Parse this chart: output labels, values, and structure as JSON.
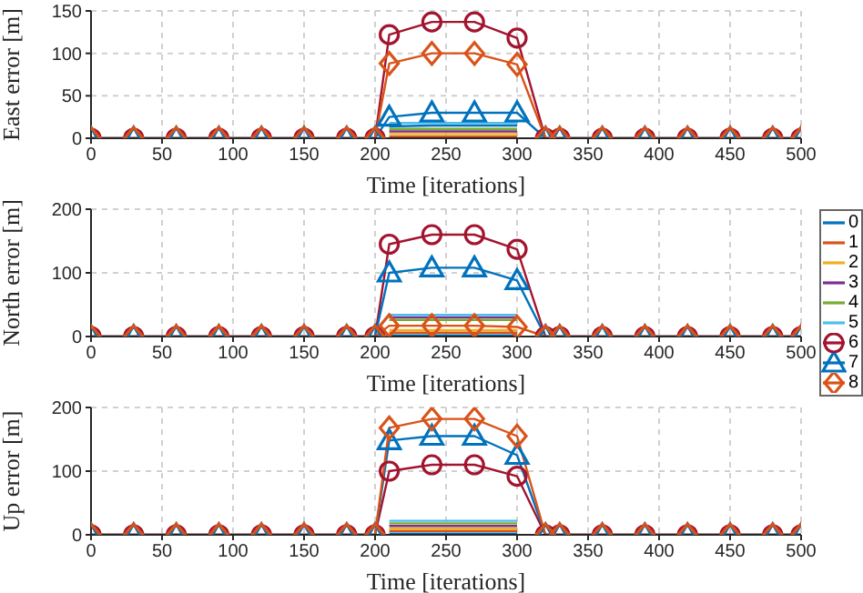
{
  "chart_data": [
    {
      "type": "line",
      "xlabel": "Time [iterations]",
      "ylabel": "East error [m]",
      "x": [
        0,
        30,
        60,
        90,
        120,
        150,
        180,
        200,
        210,
        240,
        270,
        300,
        320,
        330,
        360,
        390,
        420,
        450,
        480,
        500
      ],
      "xlim": [
        0,
        500
      ],
      "xticks": [
        0,
        50,
        100,
        150,
        200,
        250,
        300,
        350,
        400,
        450,
        500
      ],
      "ylim": [
        0,
        150
      ],
      "yticks": [
        0,
        50,
        100,
        150
      ],
      "grid": true,
      "legend": false,
      "line_style": "solid",
      "series": [
        {
          "color": "#0072bd",
          "marker": "none",
          "values": [
            null,
            null,
            null,
            null,
            null,
            null,
            null,
            null,
            14,
            15,
            15,
            15,
            null,
            null,
            null,
            null,
            null,
            null,
            null,
            null
          ]
        },
        {
          "color": "#d95319",
          "marker": "none",
          "values": [
            null,
            null,
            null,
            null,
            null,
            null,
            null,
            null,
            2,
            2,
            2,
            2,
            null,
            null,
            null,
            null,
            null,
            null,
            null,
            null
          ]
        },
        {
          "color": "#edb120",
          "marker": "none",
          "values": [
            null,
            null,
            null,
            null,
            null,
            null,
            null,
            null,
            5,
            5,
            5,
            5,
            null,
            null,
            null,
            null,
            null,
            null,
            null,
            null
          ]
        },
        {
          "color": "#7e2f8e",
          "marker": "none",
          "values": [
            null,
            null,
            null,
            null,
            null,
            null,
            null,
            null,
            8,
            8,
            8,
            8,
            null,
            null,
            null,
            null,
            null,
            null,
            null,
            null
          ]
        },
        {
          "color": "#77ac30",
          "marker": "none",
          "values": [
            null,
            null,
            null,
            null,
            null,
            null,
            null,
            null,
            11,
            11,
            11,
            11,
            null,
            null,
            null,
            null,
            null,
            null,
            null,
            null
          ]
        },
        {
          "color": "#4dbeee",
          "marker": "none",
          "values": [
            null,
            null,
            null,
            null,
            null,
            null,
            null,
            null,
            18,
            18,
            18,
            18,
            null,
            null,
            null,
            null,
            null,
            null,
            null,
            null
          ]
        },
        {
          "color": "#a2142f",
          "marker": "circle",
          "values": [
            0,
            0,
            0,
            0,
            0,
            0,
            0,
            0,
            122,
            137,
            137,
            118,
            0,
            0,
            0,
            0,
            0,
            0,
            0,
            0
          ]
        },
        {
          "color": "#0072bd",
          "marker": "triangle",
          "values": [
            0,
            0,
            0,
            0,
            0,
            0,
            0,
            0,
            25,
            30,
            30,
            30,
            0,
            0,
            0,
            0,
            0,
            0,
            0,
            0
          ]
        },
        {
          "color": "#d95319",
          "marker": "diamond",
          "values": [
            0,
            0,
            0,
            0,
            0,
            0,
            0,
            0,
            88,
            100,
            100,
            87,
            0,
            0,
            0,
            0,
            0,
            0,
            0,
            0
          ]
        }
      ]
    },
    {
      "type": "line",
      "xlabel": "Time [iterations]",
      "ylabel": "North error [m]",
      "x": [
        0,
        30,
        60,
        90,
        120,
        150,
        180,
        200,
        210,
        240,
        270,
        300,
        320,
        330,
        360,
        390,
        420,
        450,
        480,
        500
      ],
      "xlim": [
        0,
        500
      ],
      "xticks": [
        0,
        50,
        100,
        150,
        200,
        250,
        300,
        350,
        400,
        450,
        500
      ],
      "ylim": [
        0,
        200
      ],
      "yticks": [
        0,
        100,
        200
      ],
      "grid": true,
      "legend": "right",
      "line_style": "solid",
      "series": [
        {
          "name": "0",
          "color": "#0072bd",
          "marker": "none",
          "values": [
            null,
            null,
            null,
            null,
            null,
            null,
            null,
            null,
            2,
            2,
            2,
            2,
            null,
            null,
            null,
            null,
            null,
            null,
            null,
            null
          ]
        },
        {
          "name": "1",
          "color": "#d95319",
          "marker": "none",
          "values": [
            null,
            null,
            null,
            null,
            null,
            null,
            null,
            null,
            6,
            6,
            6,
            6,
            null,
            null,
            null,
            null,
            null,
            null,
            null,
            null
          ]
        },
        {
          "name": "2",
          "color": "#edb120",
          "marker": "none",
          "values": [
            null,
            null,
            null,
            null,
            null,
            null,
            null,
            null,
            10,
            10,
            10,
            10,
            null,
            null,
            null,
            null,
            null,
            null,
            null,
            null
          ]
        },
        {
          "name": "3",
          "color": "#7e2f8e",
          "marker": "none",
          "values": [
            null,
            null,
            null,
            null,
            null,
            null,
            null,
            null,
            30,
            30,
            30,
            30,
            null,
            null,
            null,
            null,
            null,
            null,
            null,
            null
          ]
        },
        {
          "name": "4",
          "color": "#77ac30",
          "marker": "none",
          "values": [
            null,
            null,
            null,
            null,
            null,
            null,
            null,
            null,
            26,
            26,
            26,
            26,
            null,
            null,
            null,
            null,
            null,
            null,
            null,
            null
          ]
        },
        {
          "name": "5",
          "color": "#4dbeee",
          "marker": "none",
          "values": [
            null,
            null,
            null,
            null,
            null,
            null,
            null,
            null,
            34,
            34,
            34,
            34,
            null,
            null,
            null,
            null,
            null,
            null,
            null,
            null
          ]
        },
        {
          "name": "6",
          "color": "#a2142f",
          "marker": "circle",
          "values": [
            0,
            0,
            0,
            0,
            0,
            0,
            0,
            0,
            145,
            160,
            160,
            137,
            0,
            0,
            0,
            0,
            0,
            0,
            0,
            0
          ]
        },
        {
          "name": "7",
          "color": "#0072bd",
          "marker": "triangle",
          "values": [
            0,
            0,
            0,
            0,
            0,
            0,
            0,
            0,
            100,
            108,
            108,
            88,
            0,
            0,
            0,
            0,
            0,
            0,
            0,
            0
          ]
        },
        {
          "name": "8",
          "color": "#d95319",
          "marker": "diamond",
          "values": [
            0,
            0,
            0,
            0,
            0,
            0,
            0,
            0,
            17,
            17,
            17,
            15,
            0,
            0,
            0,
            0,
            0,
            0,
            0,
            0
          ]
        }
      ]
    },
    {
      "type": "line",
      "xlabel": "Time [iterations]",
      "ylabel": "Up error [m]",
      "x": [
        0,
        30,
        60,
        90,
        120,
        150,
        180,
        200,
        210,
        240,
        270,
        300,
        320,
        330,
        360,
        390,
        420,
        450,
        480,
        500
      ],
      "xlim": [
        0,
        500
      ],
      "xticks": [
        0,
        50,
        100,
        150,
        200,
        250,
        300,
        350,
        400,
        450,
        500
      ],
      "ylim": [
        0,
        200
      ],
      "yticks": [
        0,
        100,
        200
      ],
      "grid": true,
      "legend": false,
      "line_style": "solid",
      "series": [
        {
          "color": "#0072bd",
          "marker": "none",
          "values": [
            null,
            null,
            null,
            null,
            null,
            null,
            null,
            null,
            2,
            2,
            2,
            2,
            null,
            null,
            null,
            null,
            null,
            null,
            null,
            null
          ]
        },
        {
          "color": "#d95319",
          "marker": "none",
          "values": [
            null,
            null,
            null,
            null,
            null,
            null,
            null,
            null,
            6,
            6,
            6,
            6,
            null,
            null,
            null,
            null,
            null,
            null,
            null,
            null
          ]
        },
        {
          "color": "#edb120",
          "marker": "none",
          "values": [
            null,
            null,
            null,
            null,
            null,
            null,
            null,
            null,
            10,
            10,
            10,
            10,
            null,
            null,
            null,
            null,
            null,
            null,
            null,
            null
          ]
        },
        {
          "color": "#7e2f8e",
          "marker": "none",
          "values": [
            null,
            null,
            null,
            null,
            null,
            null,
            null,
            null,
            14,
            14,
            14,
            14,
            null,
            null,
            null,
            null,
            null,
            null,
            null,
            null
          ]
        },
        {
          "color": "#77ac30",
          "marker": "none",
          "values": [
            null,
            null,
            null,
            null,
            null,
            null,
            null,
            null,
            18,
            18,
            18,
            18,
            null,
            null,
            null,
            null,
            null,
            null,
            null,
            null
          ]
        },
        {
          "color": "#4dbeee",
          "marker": "none",
          "values": [
            null,
            null,
            null,
            null,
            null,
            null,
            null,
            null,
            22,
            22,
            22,
            22,
            null,
            null,
            null,
            null,
            null,
            null,
            null,
            null
          ]
        },
        {
          "color": "#a2142f",
          "marker": "circle",
          "values": [
            0,
            0,
            0,
            0,
            0,
            0,
            0,
            0,
            100,
            110,
            110,
            92,
            0,
            0,
            0,
            0,
            0,
            0,
            0,
            0
          ]
        },
        {
          "color": "#0072bd",
          "marker": "triangle",
          "values": [
            0,
            0,
            0,
            0,
            0,
            0,
            0,
            0,
            148,
            155,
            155,
            125,
            0,
            0,
            0,
            0,
            0,
            0,
            0,
            0
          ]
        },
        {
          "color": "#d95319",
          "marker": "diamond",
          "values": [
            0,
            0,
            0,
            0,
            0,
            0,
            0,
            0,
            168,
            182,
            182,
            155,
            0,
            0,
            0,
            0,
            0,
            0,
            0,
            0
          ]
        }
      ]
    }
  ]
}
